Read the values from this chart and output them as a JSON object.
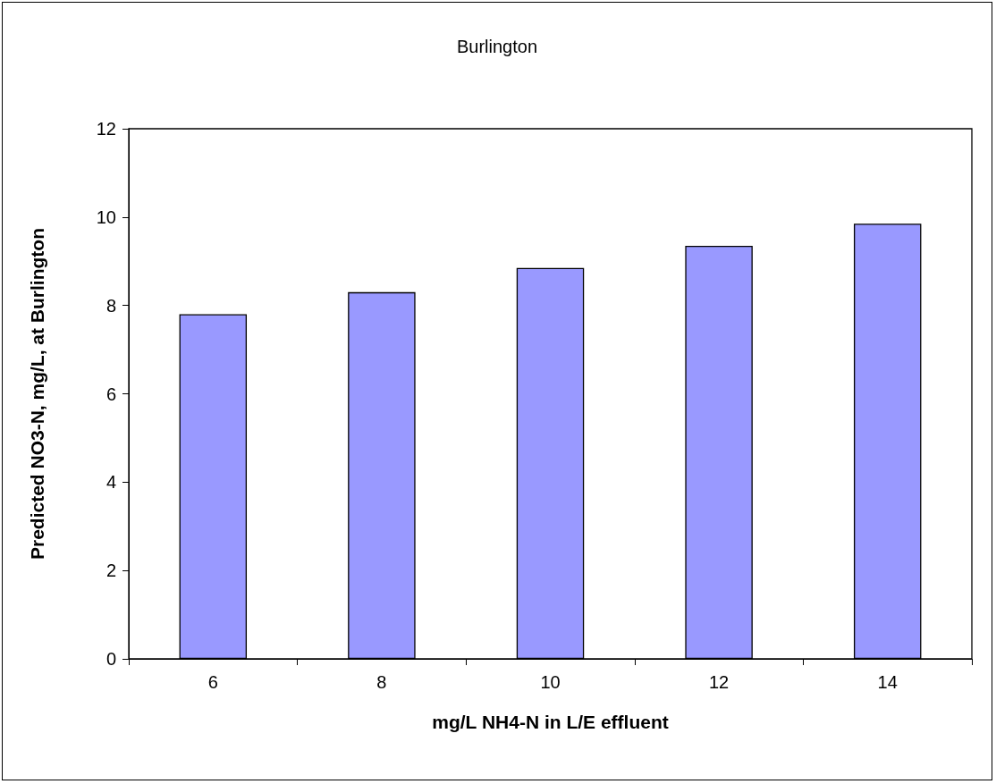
{
  "chart_data": {
    "type": "bar",
    "title": "Burlington",
    "xlabel": "mg/L NH4-N in L/E effluent",
    "ylabel": "Predicted NO3-N, mg/L, at Burlington",
    "categories": [
      "6",
      "8",
      "10",
      "12",
      "14"
    ],
    "series": [
      {
        "color": "#9999ff",
        "values": [
          7.8,
          8.3,
          8.85,
          9.35,
          9.85
        ]
      }
    ],
    "ylim": [
      0,
      12
    ],
    "yticks": [
      0,
      2,
      4,
      6,
      8,
      10,
      12
    ],
    "grid": false
  }
}
